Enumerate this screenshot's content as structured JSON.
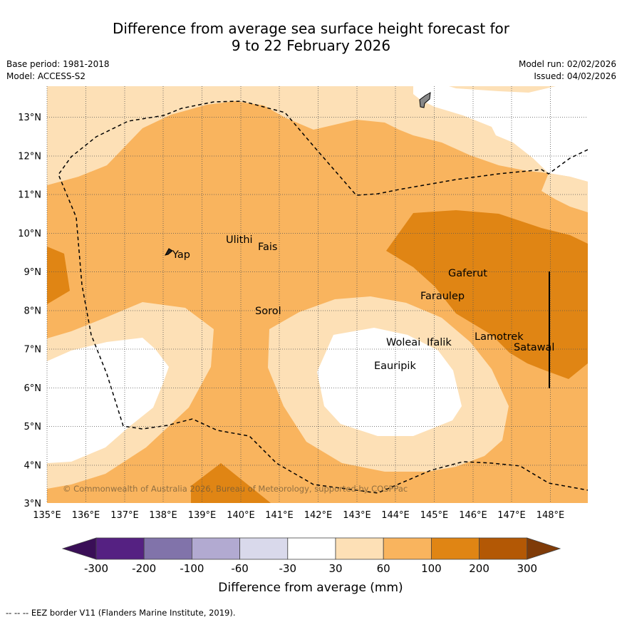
{
  "title_line1": "Difference from average sea surface height forecast for",
  "title_line2": "9 to 22 February 2026",
  "meta": {
    "base_period": "Base period: 1981-2018",
    "model": "Model: ACCESS-S2",
    "model_run": "Model run: 02/02/2026",
    "issued": "Issued: 04/02/2026"
  },
  "axes": {
    "x_ticks": [
      "135°E",
      "136°E",
      "137°E",
      "138°E",
      "139°E",
      "140°E",
      "141°E",
      "142°E",
      "143°E",
      "144°E",
      "145°E",
      "146°E",
      "147°E",
      "148°E"
    ],
    "y_ticks": [
      "13°N",
      "12°N",
      "11°N",
      "10°N",
      "9°N",
      "8°N",
      "7°N",
      "6°N",
      "5°N",
      "4°N",
      "3°N"
    ]
  },
  "places": [
    {
      "name": "Yap"
    },
    {
      "name": "Ulithi"
    },
    {
      "name": "Fais"
    },
    {
      "name": "Gaferut"
    },
    {
      "name": "Faraulep"
    },
    {
      "name": "Sorol"
    },
    {
      "name": "Woleai"
    },
    {
      "name": "Ifalik"
    },
    {
      "name": "Lamotrek"
    },
    {
      "name": "Satawal"
    },
    {
      "name": "Eauripik"
    }
  ],
  "copyright": "© Commonwealth of Australia 2026, Bureau of Meteorology, supported by COSPPac",
  "colorbar": {
    "label": "Difference from average (mm)",
    "ticks": [
      "-300",
      "-200",
      "-100",
      "-60",
      "-30",
      "30",
      "60",
      "100",
      "200",
      "300"
    ],
    "colors": [
      "#3a0f57",
      "#552182",
      "#8173aa",
      "#b2aad1",
      "#d9d9eb",
      "#ffffff",
      "#fde0b6",
      "#f9b45e",
      "#e08514",
      "#b35805",
      "#7f3b08"
    ]
  },
  "footer": "--  --  -- EEZ border V11 (Flanders Marine Institute, 2019)."
}
